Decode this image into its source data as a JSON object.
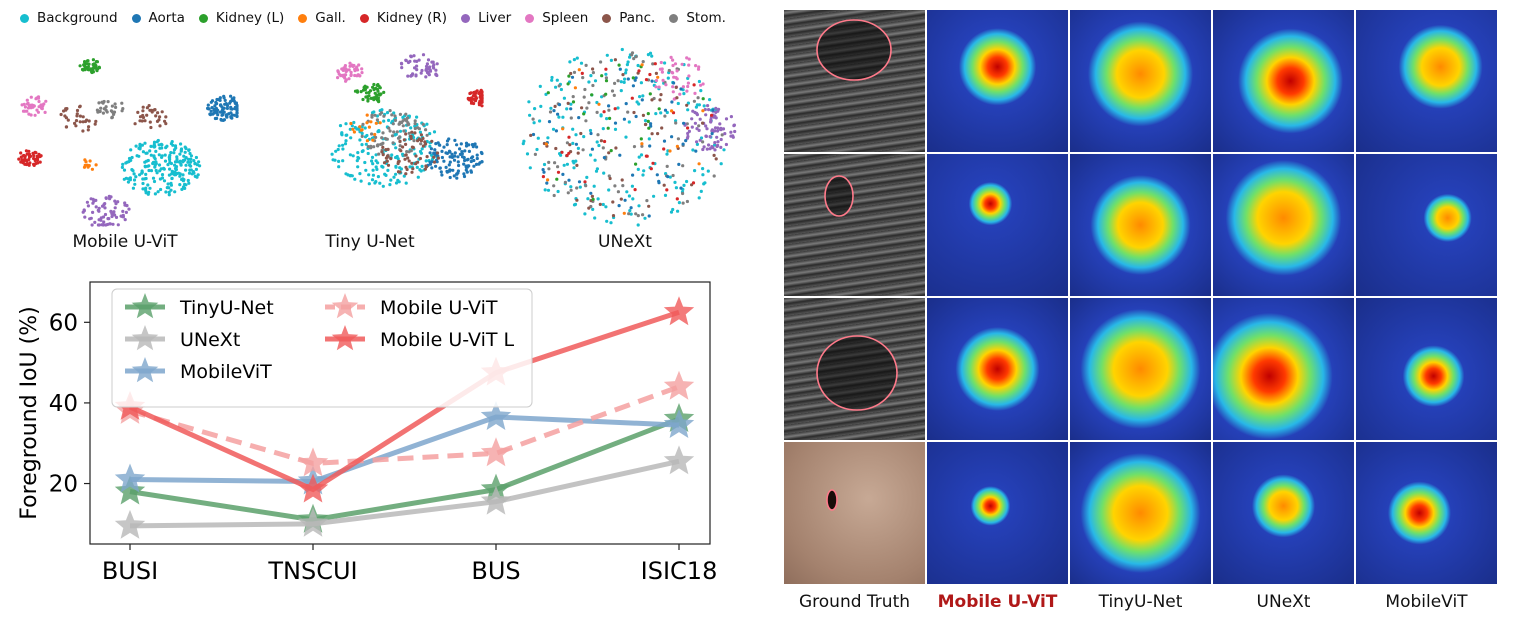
{
  "tsne": {
    "legend": [
      {
        "label": "Background",
        "color": "#17becf"
      },
      {
        "label": "Aorta",
        "color": "#1f77b4"
      },
      {
        "label": "Kidney (L)",
        "color": "#2ca02c"
      },
      {
        "label": "Gall.",
        "color": "#ff7f0e"
      },
      {
        "label": "Kidney (R)",
        "color": "#d62728"
      },
      {
        "label": "Liver",
        "color": "#9467bd"
      },
      {
        "label": "Spleen",
        "color": "#e377c2"
      },
      {
        "label": "Panc.",
        "color": "#8c564b"
      },
      {
        "label": "Stom.",
        "color": "#7f7f7f"
      }
    ],
    "plots": [
      {
        "title": "Mobile U-ViT"
      },
      {
        "title": "Tiny U-Net"
      },
      {
        "title": "UNeXt"
      }
    ]
  },
  "chart_data": {
    "type": "line",
    "categories": [
      "BUSI",
      "TNSCUI",
      "BUS",
      "ISIC18"
    ],
    "ylabel": "Foreground IoU (%)",
    "ylim": [
      5,
      70
    ],
    "yticks": [
      20,
      40,
      60
    ],
    "series": [
      {
        "name": "TinyU-Net",
        "values": [
          18,
          11,
          18.5,
          36
        ],
        "color": "#5aa06a",
        "dashed": false
      },
      {
        "name": "UNeXt",
        "values": [
          9.5,
          10,
          15.5,
          25.5
        ],
        "color": "#b8b8b8",
        "dashed": false
      },
      {
        "name": "MobileViT",
        "values": [
          21,
          20.5,
          36.5,
          34.5
        ],
        "color": "#7ea6cc",
        "dashed": false
      },
      {
        "name": "Mobile U-ViT",
        "values": [
          38,
          25,
          27.5,
          44
        ],
        "color": "#f4a0a0",
        "dashed": true
      },
      {
        "name": "Mobile U-ViT L",
        "values": [
          39,
          18.5,
          47.5,
          62.5
        ],
        "color": "#f05a5a",
        "dashed": false
      }
    ],
    "legend_columns": [
      [
        "TinyU-Net",
        "UNeXt",
        "MobileViT"
      ],
      [
        "Mobile U-ViT",
        "Mobile U-ViT L"
      ]
    ]
  },
  "heatmap": {
    "columns": [
      "Ground Truth",
      "Mobile U-ViT",
      "TinyU-Net",
      "UNeXt",
      "MobileViT"
    ],
    "highlight_column": "Mobile U-ViT"
  }
}
